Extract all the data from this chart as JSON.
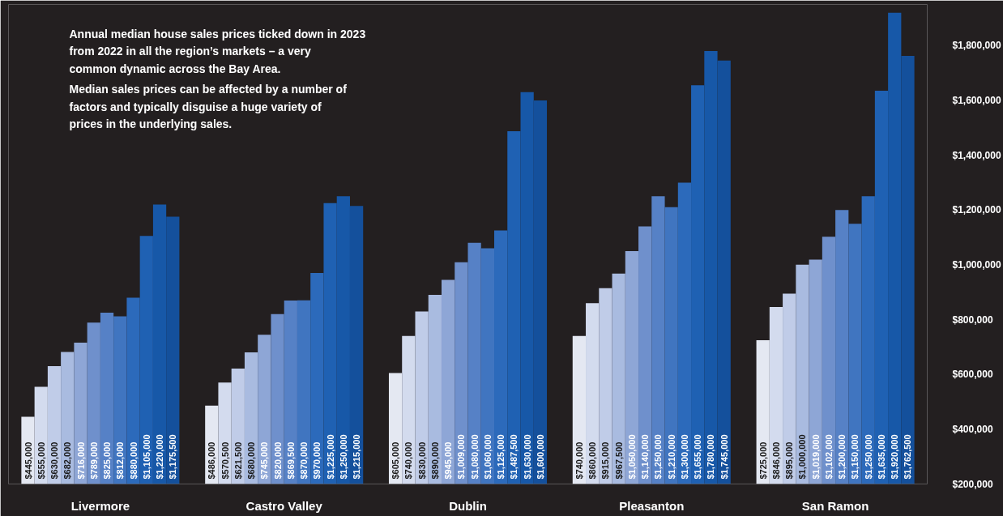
{
  "chart_data": {
    "type": "bar",
    "categories": [
      "Livermore",
      "Castro Valley",
      "Dublin",
      "Pleasanton",
      "San Ramon"
    ],
    "series": [
      {
        "color": "#e4e8f2",
        "values": [
          445000,
          486000,
          605000,
          740000,
          725000
        ],
        "value_labels": [
          "$445,000",
          "$486,000",
          "$605,000",
          "$740,000",
          "$725,000"
        ]
      },
      {
        "color": "#d3dbee",
        "values": [
          555000,
          570500,
          740000,
          860000,
          846000
        ],
        "value_labels": [
          "$555,000",
          "$570,500",
          "$740,000",
          "$860,000",
          "$846,000"
        ]
      },
      {
        "color": "#c0cce8",
        "values": [
          630000,
          621500,
          830000,
          915000,
          895000
        ],
        "value_labels": [
          "$630,000",
          "$621,500",
          "$830,000",
          "$915,000",
          "$895,000"
        ]
      },
      {
        "color": "#a9bbe0",
        "values": [
          682000,
          680000,
          890000,
          967500,
          1000000
        ],
        "value_labels": [
          "$682,000",
          "$680,000",
          "$890,000",
          "$967,500",
          "$1,000,000"
        ]
      },
      {
        "color": "#8ea6d6",
        "values": [
          716000,
          745000,
          945000,
          1050000,
          1019000
        ],
        "value_labels": [
          "$716,000",
          "$745,000",
          "$945,000",
          "$1,050,000",
          "$1,019,000"
        ]
      },
      {
        "color": "#6f90cc",
        "values": [
          789000,
          820000,
          1009000,
          1140000,
          1102000
        ],
        "value_labels": [
          "$789,000",
          "$820,000",
          "$1,009,000",
          "$1,140,000",
          "$1,102,000"
        ]
      },
      {
        "color": "#5681c6",
        "values": [
          825000,
          869500,
          1080000,
          1250000,
          1200000
        ],
        "value_labels": [
          "$825,000",
          "$869,500",
          "$1,080,000",
          "$1,250,000",
          "$1,200,000"
        ]
      },
      {
        "color": "#4075c0",
        "values": [
          812000,
          870000,
          1060000,
          1210000,
          1150000
        ],
        "value_labels": [
          "$812,000",
          "$870,000",
          "$1,060,000",
          "$1,210,000",
          "$1,150,000"
        ]
      },
      {
        "color": "#2c6abb",
        "values": [
          880000,
          970000,
          1125000,
          1300000,
          1250000
        ],
        "value_labels": [
          "$880,000",
          "$970,000",
          "$1,125,000",
          "$1,300,000",
          "$1,250,000"
        ]
      },
      {
        "color": "#1f61b3",
        "values": [
          1105000,
          1225000,
          1487500,
          1655000,
          1635000
        ],
        "value_labels": [
          "$1,105,000",
          "$1,225,000",
          "$1,487,500",
          "$1,655,000",
          "$1,635,000"
        ]
      },
      {
        "color": "#1758a8",
        "values": [
          1220000,
          1250000,
          1630000,
          1780000,
          1920000
        ],
        "value_labels": [
          "$1,220,000",
          "$1,250,000",
          "$1,630,000",
          "$1,780,000",
          "$1,920,000"
        ]
      },
      {
        "color": "#14509c",
        "values": [
          1175500,
          1215000,
          1600000,
          1745000,
          1762500
        ],
        "value_labels": [
          "$1,175,500",
          "$1,215,000",
          "$1,600,000",
          "$1,745,000",
          "$1,762,500"
        ]
      }
    ],
    "ylim": [
      200000,
      1950000
    ],
    "yticks": [
      {
        "value": 200000,
        "label": "$200,000"
      },
      {
        "value": 400000,
        "label": "$400,000"
      },
      {
        "value": 600000,
        "label": "$600,000"
      },
      {
        "value": 800000,
        "label": "$800,000"
      },
      {
        "value": 1000000,
        "label": "$1,000,000"
      },
      {
        "value": 1200000,
        "label": "$1,200,000"
      },
      {
        "value": 1400000,
        "label": "$1,400,000"
      },
      {
        "value": 1600000,
        "label": "$1,600,000"
      },
      {
        "value": 1800000,
        "label": "$1,800,000"
      }
    ],
    "annotations": [
      "Annual median house sales prices ticked down in 2023 from 2022 in all the region’s markets – a very common dynamic across the Bay Area.",
      "Median sales prices can be affected by a number of factors and typically disguise a huge variety of prices in the underlying sales."
    ],
    "grid": false
  }
}
